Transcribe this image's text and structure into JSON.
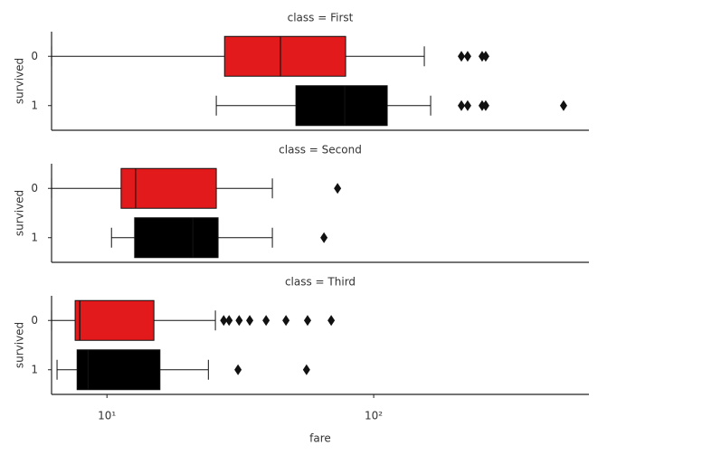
{
  "chart_data": [
    {
      "type": "box",
      "title": "class = First",
      "ylabel": "survived",
      "categories": [
        "0",
        "1"
      ],
      "colors": [
        "#e31a1c",
        "#000000"
      ],
      "xscale": "log",
      "xlim": [
        6.2,
        641
      ],
      "boxes": [
        {
          "whislo": 6.2,
          "q1": 27.6,
          "med": 44.7,
          "q3": 78.5,
          "whishi": 154.8,
          "fliers": [
            213.2,
            225,
            255,
            263
          ]
        },
        {
          "whislo": 25.7,
          "q1": 51.1,
          "med": 77.9,
          "q3": 112.4,
          "whishi": 163.5,
          "fliers": [
            213.2,
            225,
            255,
            263,
            515
          ]
        }
      ]
    },
    {
      "type": "box",
      "title": "class = Second",
      "ylabel": "survived",
      "categories": [
        "0",
        "1"
      ],
      "colors": [
        "#e31a1c",
        "#000000"
      ],
      "xscale": "log",
      "xlim": [
        6.2,
        641
      ],
      "boxes": [
        {
          "whislo": 6.2,
          "q1": 11.3,
          "med": 12.8,
          "q3": 25.7,
          "whishi": 41.7,
          "fliers": [
            73.2
          ]
        },
        {
          "whislo": 10.4,
          "q1": 12.7,
          "med": 21,
          "q3": 26.1,
          "whishi": 41.7,
          "fliers": [
            65.1
          ]
        }
      ]
    },
    {
      "type": "box",
      "title": "class = Third",
      "ylabel": "survived",
      "xlabel": "fare",
      "categories": [
        "0",
        "1"
      ],
      "colors": [
        "#e31a1c",
        "#000000"
      ],
      "xscale": "log",
      "xlim": [
        6.2,
        641
      ],
      "xticks": [
        {
          "value": 10,
          "label": "10¹"
        },
        {
          "value": 100,
          "label": "10²"
        }
      ],
      "boxes": [
        {
          "whislo": 6.2,
          "q1": 7.6,
          "med": 7.91,
          "q3": 15.0,
          "whishi": 25.5,
          "fliers": [
            27.4,
            28.7,
            31.3,
            34.3,
            39.5,
            46.9,
            56.5,
            69.3
          ]
        },
        {
          "whislo": 6.5,
          "q1": 7.73,
          "med": 8.5,
          "q3": 15.8,
          "whishi": 24.0,
          "fliers": [
            31.0,
            56.0
          ]
        }
      ]
    }
  ]
}
